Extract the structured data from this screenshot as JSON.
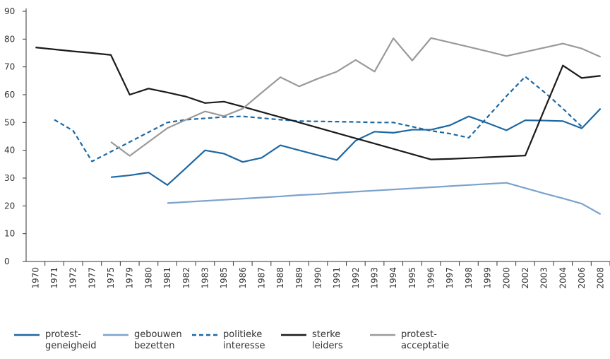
{
  "chart_data": {
    "type": "line",
    "categories": [
      "1970",
      "1971",
      "1972",
      "1977",
      "1975",
      "1979",
      "1980",
      "1981",
      "1982",
      "1983",
      "1985",
      "1986",
      "1987",
      "1988",
      "1989",
      "1990",
      "1991",
      "1992",
      "1993",
      "1994",
      "1995",
      "1996",
      "1997",
      "1998",
      "1999",
      "2000",
      "2002",
      "2003",
      "2004",
      "2006",
      "2008"
    ],
    "ylim": [
      0,
      90
    ],
    "yticks": [
      0,
      10,
      20,
      30,
      40,
      50,
      60,
      70,
      80,
      90
    ],
    "grid": false,
    "series": [
      {
        "name": "protest-geneigheid",
        "color": "#1d68a3",
        "dashed": false,
        "values": [
          null,
          null,
          null,
          null,
          30.3,
          31,
          32,
          27.5,
          33.7,
          40,
          38.8,
          35.8,
          37.3,
          41.8,
          40,
          38.2,
          36.5,
          43.5,
          46.7,
          46.3,
          47.4,
          47.4,
          49,
          52.2,
          49.8,
          47.2,
          50.8,
          50.7,
          50.5,
          47.9,
          55
        ]
      },
      {
        "name": "gebouwen bezetten",
        "color": "#7ba3cc",
        "dashed": false,
        "values": [
          null,
          null,
          null,
          null,
          null,
          null,
          null,
          21,
          21.4,
          21.8,
          22.2,
          22.6,
          23,
          23.4,
          23.9,
          24.2,
          24.7,
          25.1,
          25.5,
          25.9,
          26.3,
          26.7,
          27.1,
          27.5,
          27.9,
          28.3,
          26.4,
          24.5,
          22.7,
          20.8,
          17
        ]
      },
      {
        "name": "politieke interesse",
        "color": "#1d68a3",
        "dashed": true,
        "values": [
          null,
          51,
          47,
          36,
          39.5,
          43,
          46.5,
          50,
          51,
          51.5,
          52,
          52.2,
          51.6,
          51,
          50.5,
          50.4,
          50.3,
          50.2,
          50,
          50,
          48.5,
          47,
          46,
          44.5,
          52,
          59.5,
          66.5,
          61,
          55,
          48.5,
          null
        ]
      },
      {
        "name": "sterke leiders",
        "color": "#1a1a1a",
        "dashed": false,
        "values": [
          77,
          76.3,
          75.6,
          75,
          74.3,
          60,
          62.2,
          60.8,
          59.3,
          57,
          57.5,
          55.7,
          53.8,
          51.9,
          50,
          48.1,
          46.2,
          44.3,
          42.4,
          40.5,
          38.6,
          36.7,
          36.9,
          37.2,
          37.5,
          37.8,
          38.1,
          54.4,
          70.5,
          66,
          66.8
        ]
      },
      {
        "name": "protest-acceptatie",
        "color": "#9a9a9a",
        "dashed": false,
        "values": [
          null,
          null,
          null,
          null,
          43,
          38,
          43,
          48,
          51,
          54,
          52.3,
          55,
          60.7,
          66.3,
          63,
          65.8,
          68.3,
          72.5,
          68.3,
          80.3,
          72.3,
          80.4,
          78.8,
          77.2,
          75.6,
          73.9,
          75.4,
          76.9,
          78.4,
          76.6,
          73.6
        ]
      }
    ]
  }
}
